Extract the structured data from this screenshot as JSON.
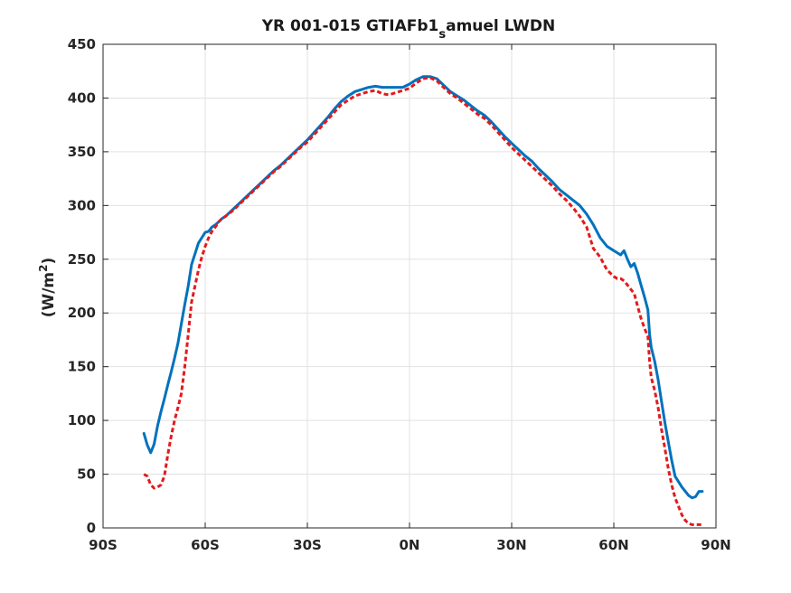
{
  "chart_data": {
    "type": "line",
    "title_main": "YR 001-015 GTIAFb1",
    "title_sub": "s",
    "title_rest": "amuel LWDN",
    "ylabel_main": "(W/m",
    "ylabel_sup": "2",
    "ylabel_end": ")",
    "xlabel": "",
    "xlim": [
      -90,
      90
    ],
    "ylim": [
      0,
      450
    ],
    "grid": true,
    "xticks": [
      {
        "v": -90,
        "label": "90S"
      },
      {
        "v": -60,
        "label": "60S"
      },
      {
        "v": -30,
        "label": "30S"
      },
      {
        "v": 0,
        "label": "0N"
      },
      {
        "v": 30,
        "label": "30N"
      },
      {
        "v": 60,
        "label": "60N"
      },
      {
        "v": 90,
        "label": "90N"
      }
    ],
    "yticks": [
      {
        "v": 0,
        "label": "0"
      },
      {
        "v": 50,
        "label": "50"
      },
      {
        "v": 100,
        "label": "100"
      },
      {
        "v": 150,
        "label": "150"
      },
      {
        "v": 200,
        "label": "200"
      },
      {
        "v": 250,
        "label": "250"
      },
      {
        "v": 300,
        "label": "300"
      },
      {
        "v": 350,
        "label": "350"
      },
      {
        "v": 400,
        "label": "400"
      },
      {
        "v": 450,
        "label": "450"
      }
    ],
    "series": [
      {
        "color": "#0072bd",
        "style": "solid",
        "x": [
          -78,
          -77,
          -76,
          -75,
          -74,
          -73,
          -72,
          -71,
          -70,
          -69,
          -68,
          -67,
          -66,
          -65,
          -64,
          -63,
          -62,
          -61,
          -60,
          -59,
          -58,
          -57,
          -56,
          -55,
          -54,
          -52,
          -50,
          -48,
          -46,
          -44,
          -42,
          -40,
          -38,
          -36,
          -34,
          -32,
          -30,
          -28,
          -26,
          -24,
          -22,
          -20,
          -18,
          -16,
          -14,
          -12,
          -10,
          -8,
          -6,
          -4,
          -2,
          0,
          2,
          4,
          6,
          8,
          10,
          12,
          14,
          16,
          18,
          20,
          22,
          24,
          26,
          28,
          30,
          32,
          34,
          36,
          38,
          40,
          42,
          44,
          46,
          48,
          50,
          52,
          54,
          56,
          58,
          60,
          61,
          62,
          63,
          64,
          65,
          66,
          67,
          68,
          69,
          70,
          70.5,
          71,
          72,
          73,
          74,
          75,
          76,
          77,
          78,
          79,
          80,
          81,
          82,
          83,
          84,
          85,
          86
        ],
        "y": [
          88,
          77,
          70,
          78,
          95,
          108,
          120,
          133,
          145,
          158,
          172,
          190,
          208,
          225,
          245,
          255,
          265,
          270,
          275,
          276,
          280,
          282,
          285,
          288,
          290,
          296,
          302,
          308,
          314,
          320,
          326,
          332,
          337,
          343,
          349,
          355,
          361,
          368,
          375,
          382,
          390,
          397,
          402,
          406,
          408,
          410,
          411,
          410,
          410,
          410,
          410,
          413,
          417,
          420,
          420,
          418,
          412,
          406,
          402,
          398,
          393,
          388,
          384,
          378,
          371,
          364,
          358,
          352,
          346,
          341,
          334,
          328,
          322,
          315,
          310,
          305,
          300,
          292,
          282,
          270,
          262,
          258,
          256,
          254,
          258,
          250,
          243,
          246,
          237,
          226,
          215,
          203,
          180,
          168,
          155,
          138,
          118,
          98,
          80,
          63,
          48,
          43,
          38,
          34,
          30,
          28,
          29,
          34,
          34
        ]
      },
      {
        "color": "#e31a1c",
        "style": "dashed",
        "x": [
          -78,
          -77,
          -76,
          -75,
          -74,
          -73,
          -72,
          -71,
          -70,
          -69,
          -68,
          -67,
          -66,
          -65,
          -64,
          -63,
          -62,
          -61,
          -60,
          -59,
          -58,
          -57,
          -56,
          -55,
          -54,
          -52,
          -50,
          -48,
          -46,
          -44,
          -42,
          -40,
          -38,
          -36,
          -34,
          -32,
          -30,
          -28,
          -26,
          -24,
          -22,
          -20,
          -18,
          -16,
          -14,
          -12,
          -10,
          -8,
          -6,
          -4,
          -2,
          0,
          2,
          4,
          6,
          8,
          10,
          12,
          14,
          16,
          18,
          20,
          22,
          24,
          26,
          28,
          30,
          32,
          34,
          36,
          38,
          40,
          42,
          44,
          46,
          48,
          50,
          52,
          54,
          56,
          58,
          60,
          61,
          62,
          63,
          64,
          65,
          66,
          67,
          68,
          69,
          70,
          70.5,
          71,
          72,
          73,
          74,
          75,
          76,
          77,
          78,
          79,
          80,
          81,
          82,
          83,
          84,
          85,
          86
        ],
        "y": [
          50,
          48,
          40,
          37,
          38,
          40,
          48,
          68,
          85,
          100,
          112,
          125,
          150,
          180,
          210,
          225,
          240,
          252,
          262,
          270,
          276,
          280,
          285,
          288,
          290,
          295,
          301,
          307,
          313,
          319,
          325,
          331,
          336,
          342,
          348,
          354,
          359,
          366,
          373,
          380,
          387,
          394,
          398,
          402,
          404,
          406,
          407,
          404,
          403,
          405,
          407,
          409,
          414,
          418,
          419,
          416,
          410,
          404,
          400,
          395,
          390,
          385,
          381,
          375,
          368,
          361,
          354,
          348,
          342,
          336,
          330,
          324,
          318,
          311,
          305,
          298,
          290,
          280,
          260,
          252,
          240,
          234,
          232,
          232,
          230,
          226,
          222,
          218,
          206,
          195,
          186,
          178,
          155,
          140,
          128,
          112,
          92,
          74,
          55,
          40,
          28,
          20,
          12,
          7,
          4,
          3,
          3,
          3,
          3
        ]
      }
    ]
  }
}
